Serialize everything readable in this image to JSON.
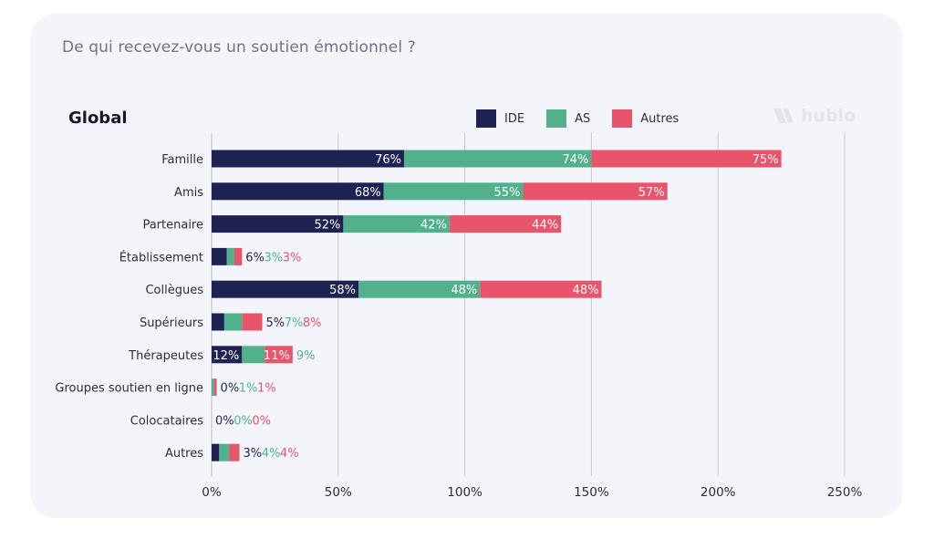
{
  "card": {
    "question": "De qui recevez-vous un soutien émotionnel ?",
    "section_title": "Global"
  },
  "brand": {
    "logo_text": "hublo"
  },
  "colors": {
    "IDE": "#1e2252",
    "AS": "#52b18c",
    "Autres": "#e8546a",
    "grid": "#c9cad3",
    "label_inside": "#ffffff"
  },
  "legend": [
    {
      "name": "IDE",
      "color": "#1e2252"
    },
    {
      "name": "AS",
      "color": "#52b18c"
    },
    {
      "name": "Autres",
      "color": "#e8546a"
    }
  ],
  "chart_data": {
    "type": "bar",
    "orientation": "horizontal",
    "stacked": true,
    "title": "Global",
    "categories": [
      "Famille",
      "Amis",
      "Partenaire",
      "Établissement",
      "Collègues",
      "Supérieurs",
      "Thérapeutes",
      "Groupes soutien en ligne",
      "Colocataires",
      "Autres"
    ],
    "series": [
      {
        "name": "IDE",
        "values": [
          76,
          68,
          52,
          6,
          58,
          5,
          12,
          0,
          0,
          3
        ],
        "labels": [
          "76%",
          "68%",
          "52%",
          "6%",
          "58%",
          "5%",
          "12%",
          "0%",
          "0%",
          "3%"
        ]
      },
      {
        "name": "AS",
        "values": [
          74,
          55,
          42,
          3,
          48,
          7,
          9,
          1,
          0,
          4
        ],
        "labels": [
          "74%",
          "55%",
          "42%",
          "3%",
          "48%",
          "7%",
          "9%",
          "1%",
          "0%",
          "4%"
        ]
      },
      {
        "name": "Autres",
        "values": [
          75,
          57,
          44,
          3,
          48,
          8,
          11,
          1,
          0,
          4
        ],
        "labels": [
          "75%",
          "57%",
          "44%",
          "3%",
          "48%",
          "8%",
          "11%",
          "1%",
          "0%",
          "4%"
        ]
      }
    ],
    "xlim": [
      0,
      250
    ],
    "xticks": [
      "0%",
      "50%",
      "100%",
      "150%",
      "200%",
      "250%"
    ],
    "grid": true,
    "legend_position": "top-center"
  }
}
